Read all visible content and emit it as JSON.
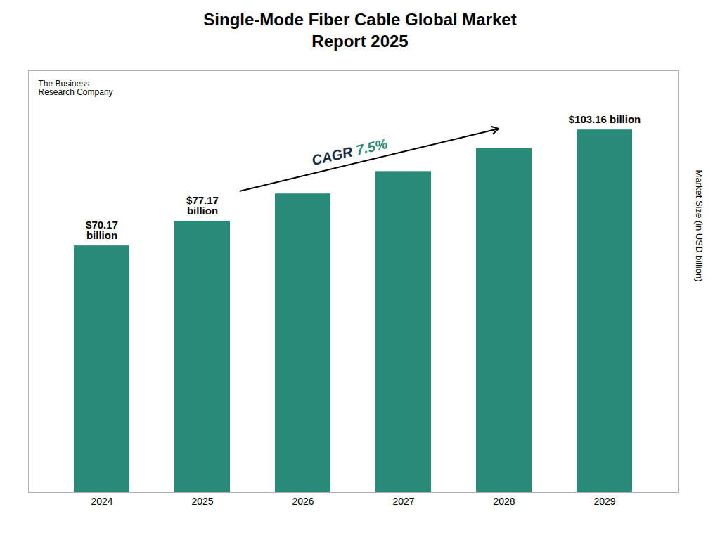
{
  "chart_data": {
    "type": "bar",
    "title": "Single-Mode Fiber Cable Global Market\nReport 2025",
    "ylabel": "Market Size (in USD billion)",
    "categories": [
      "2024",
      "2025",
      "2026",
      "2027",
      "2028",
      "2029"
    ],
    "values": [
      70.17,
      77.17,
      84.96,
      91.33,
      97.88,
      103.16
    ],
    "color": "#2a8a78",
    "ylim": [
      0,
      120
    ],
    "yticks": [],
    "tick_labels": "x",
    "data_labels": true,
    "value_labels": [
      "$70.17\nbillion",
      "$77.17\nbillion",
      null,
      null,
      null,
      "$103.16 billion"
    ],
    "annotations": [
      {
        "text": "CAGR ",
        "color": "#1a2e44"
      },
      {
        "text": "7.5%",
        "color": "#2a8a78"
      },
      {
        "text": "The Business\nResearch Company"
      }
    ]
  }
}
